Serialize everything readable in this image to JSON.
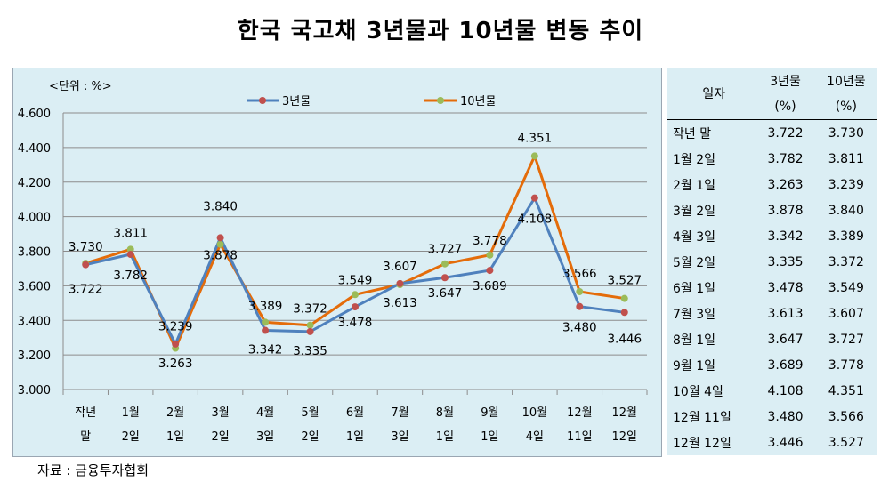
{
  "title": "한국 국고채 3년물과 10년물 변동 추이",
  "source": "자료 : 금융투자협회",
  "colors": {
    "series_3y": "#4f81bd",
    "series_10y": "#e46c0a",
    "marker_3y": "#c0504d",
    "marker_10y": "#9bbb59",
    "panel": "#dbeef4"
  },
  "chart_data": {
    "type": "line",
    "unit_label": "<단위 : %>",
    "ylim": [
      3.0,
      4.6
    ],
    "yticks": [
      "3.000",
      "3.200",
      "3.400",
      "3.600",
      "3.800",
      "4.000",
      "4.200",
      "4.400",
      "4.600"
    ],
    "grid": true,
    "legend_position": "top",
    "categories": [
      [
        "작년",
        "말"
      ],
      [
        "1월",
        "2일"
      ],
      [
        "2월",
        "1일"
      ],
      [
        "3월",
        "2일"
      ],
      [
        "4월",
        "3일"
      ],
      [
        "5월",
        "2일"
      ],
      [
        "6월",
        "1일"
      ],
      [
        "7월",
        "3일"
      ],
      [
        "8월",
        "1일"
      ],
      [
        "9월",
        "1일"
      ],
      [
        "10월",
        "4일"
      ],
      [
        "12월",
        "11일"
      ],
      [
        "12월",
        "12일"
      ]
    ],
    "series": [
      {
        "name": "3년물",
        "values": [
          3.722,
          3.782,
          3.263,
          3.878,
          3.342,
          3.335,
          3.478,
          3.613,
          3.647,
          3.689,
          4.108,
          3.48,
          3.446
        ],
        "labels": [
          "3.722",
          "3.782",
          "3.263",
          "3.878",
          "3.342",
          "3.335",
          "3.478",
          "3.613",
          "3.647",
          "3.689",
          "4.108",
          "3.480",
          "3.446"
        ]
      },
      {
        "name": "10년물",
        "values": [
          3.73,
          3.811,
          3.239,
          3.84,
          3.389,
          3.372,
          3.549,
          3.607,
          3.727,
          3.778,
          4.351,
          3.566,
          3.527
        ],
        "labels": [
          "3.730",
          "3.811",
          "3.239",
          "3.840",
          "3.389",
          "3.372",
          "3.549",
          "3.607",
          "3.727",
          "3.778",
          "4.351",
          "3.566",
          "3.527"
        ]
      }
    ]
  },
  "table": {
    "headers": [
      [
        "일자",
        ""
      ],
      [
        "3년물",
        "(%)"
      ],
      [
        "10년물",
        "(%)"
      ]
    ],
    "rows": [
      [
        "작년 말",
        "3.722",
        "3.730"
      ],
      [
        "1월  2일",
        "3.782",
        "3.811"
      ],
      [
        "2월  1일",
        "3.263",
        "3.239"
      ],
      [
        "3월  2일",
        "3.878",
        "3.840"
      ],
      [
        "4월  3일",
        "3.342",
        "3.389"
      ],
      [
        "5월  2일",
        "3.335",
        "3.372"
      ],
      [
        "6월  1일",
        "3.478",
        "3.549"
      ],
      [
        "7월  3일",
        "3.613",
        "3.607"
      ],
      [
        "8월  1일",
        "3.647",
        "3.727"
      ],
      [
        "9월 1일",
        "3.689",
        "3.778"
      ],
      [
        "10월 4일",
        "4.108",
        "4.351"
      ],
      [
        "12월 11일",
        "3.480",
        "3.566"
      ],
      [
        "12월 12일",
        "3.446",
        "3.527"
      ]
    ]
  }
}
